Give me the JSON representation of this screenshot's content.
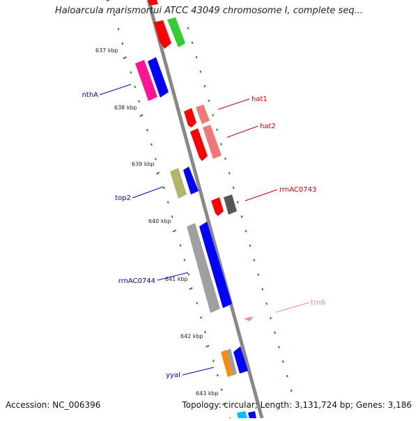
{
  "title": "Haloarcula marismortui ATCC 43049 chromosome I, complete seq...",
  "footer": {
    "accession": "Accession: NC_006396",
    "topology": "Topology: circular; Length: 3,131,724 bp; Genes: 3,186"
  },
  "colors": {
    "backbone": "#888888",
    "ticks": "#1e8c1e",
    "gene_red": "#ff0000",
    "gene_pink_red": "#f07878",
    "gene_blue": "#0000ff",
    "gene_magenta": "#ff1493",
    "gene_olive": "#b4b46e",
    "gene_gray": "#a0a0a0",
    "gene_dark_gray": "#555555",
    "gene_green": "#32cd32",
    "gene_orange": "#ff8c00",
    "gene_light_pink": "#ff80c0",
    "gene_cyan": "#00bfff",
    "label_blue": "#0000cc",
    "label_red": "#cc0000",
    "label_pink": "#ff80c0"
  },
  "tick_labels": [
    "637 kbp",
    "638 kbp",
    "639 kbp",
    "640 kbp",
    "641 kbp",
    "642 kbp",
    "643 kbp"
  ],
  "gene_labels": {
    "nthA": "nthA",
    "hat1": "hat1",
    "hat2": "hat2",
    "top2": "top2",
    "rrnAC0743": "rrnAC0743",
    "rrnAC0744": "rrnAC0744",
    "trn8": "trn8",
    "yyaI": "yyaI"
  }
}
